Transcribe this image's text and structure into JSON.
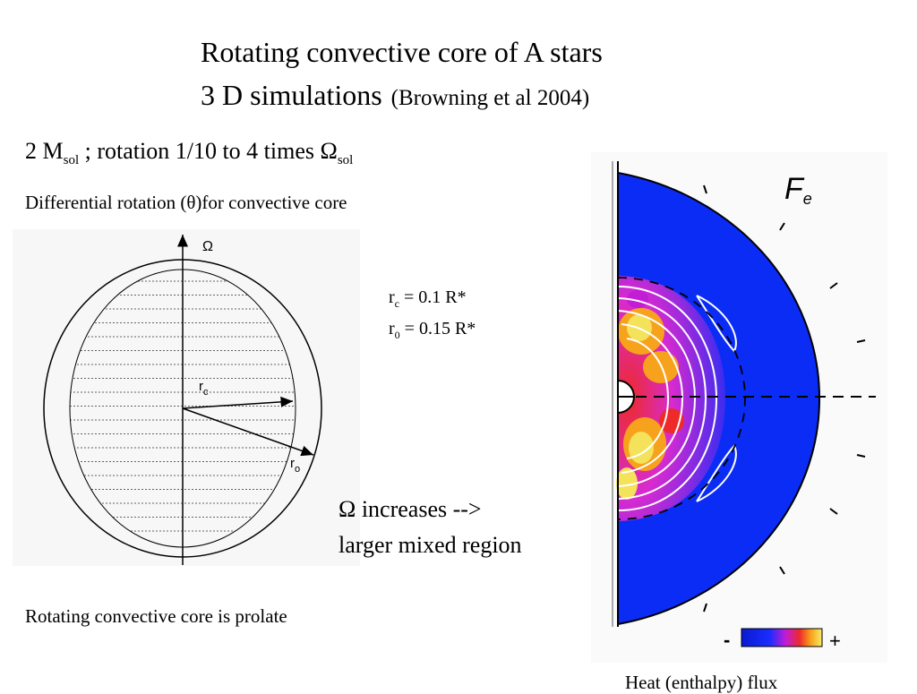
{
  "slide": {
    "title_line1": "Rotating convective core of A stars",
    "title_line2": "3 D simulations",
    "title_citation": "(Browning et al 2004)",
    "subtitle_mass": "2 M",
    "subtitle_mass_sub": "sol",
    "subtitle_rotation": " ;  rotation 1/10 to 4 times Ω",
    "subtitle_rotation_sub": "sol",
    "diff_rotation": "Differential rotation (θ)for convective core",
    "param_rc_label": "r",
    "param_rc_sub": "c",
    "param_rc_value": " =  0.1 R*",
    "param_r0_label": "r",
    "param_r0_sub": "0",
    "param_r0_value": "  = 0.15 R*",
    "omega_line1": "Ω increases   -->",
    "omega_line2": "larger  mixed region",
    "prolate": "Rotating convective core is prolate",
    "heat_caption": "Heat (enthalpy) flux"
  },
  "diagram": {
    "axis_label": "Ω",
    "rc_label": "r",
    "rc_sub": "c",
    "ro_label": "r",
    "ro_sub": "o"
  },
  "simulation": {
    "panel_label": "F",
    "panel_label_sub": "e",
    "colorbar_minus": "-",
    "colorbar_plus": "+",
    "colors": {
      "background_blue": "#0a2cf5",
      "magenta": "#d11ad8",
      "red": "#ee2a2a",
      "orange": "#f7a21c",
      "yellow": "#f3e25a"
    }
  }
}
